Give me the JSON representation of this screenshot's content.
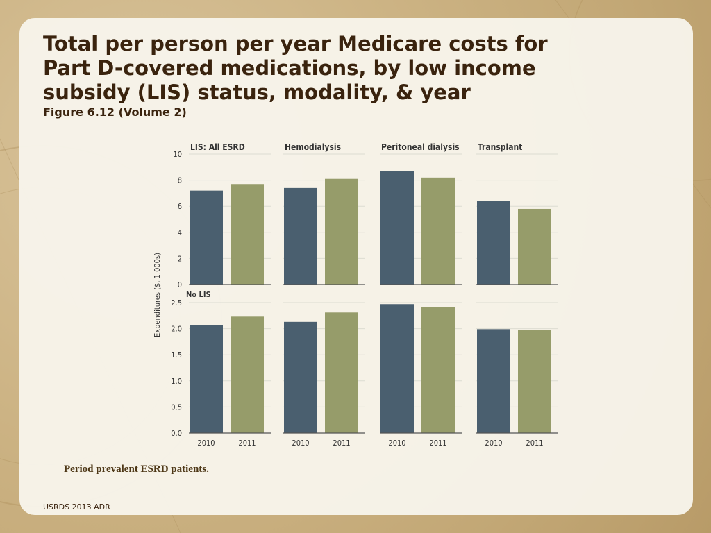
{
  "slide": {
    "title": "Total per person per year Medicare costs for Part D-covered medications, by low income subsidy (LIS) status, modality, & year",
    "subtitle": "Figure 6.12 (Volume 2)",
    "footnote": "Period prevalent ESRD patients.",
    "source": "USRDS 2013 ADR"
  },
  "chart_data": {
    "type": "bar",
    "ylabel": "Expenditures ($, 1,000s)",
    "categories": [
      "2010",
      "2011"
    ],
    "colors": {
      "2010": "#4a5f6f",
      "2011": "#969c6a"
    },
    "groups": [
      "LIS: All ESRD",
      "Hemodialysis",
      "Peritoneal dialysis",
      "Transplant"
    ],
    "rows": [
      {
        "label": "",
        "ylim": [
          0,
          10
        ],
        "yticks": [
          "0",
          "2",
          "4",
          "6",
          "8",
          "10"
        ],
        "values": [
          [
            7.2,
            7.7
          ],
          [
            7.4,
            8.1
          ],
          [
            8.7,
            8.2
          ],
          [
            6.4,
            5.8
          ]
        ]
      },
      {
        "label": "No LIS",
        "ylim": [
          0,
          2.5
        ],
        "yticks": [
          "0.0",
          "0.5",
          "1.0",
          "1.5",
          "2.0",
          "2.5"
        ],
        "values": [
          [
            2.07,
            2.23
          ],
          [
            2.13,
            2.31
          ],
          [
            2.47,
            2.42
          ],
          [
            1.99,
            1.98
          ]
        ]
      }
    ]
  }
}
